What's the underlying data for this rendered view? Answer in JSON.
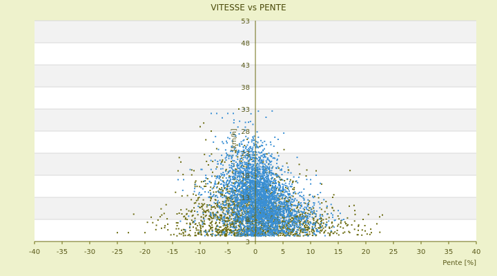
{
  "chart_data": {
    "type": "scatter",
    "title": "VITESSE vs PENTE",
    "xlabel": "Pente [%]",
    "ylabel": "[km/h]",
    "xlim": [
      -40,
      40
    ],
    "ylim": [
      3,
      53
    ],
    "x_ticks": [
      -40,
      -35,
      -30,
      -25,
      -20,
      -15,
      -10,
      -5,
      0,
      5,
      10,
      15,
      20,
      25,
      30,
      35,
      40
    ],
    "y_ticks": [
      3,
      8,
      13,
      18,
      23,
      28,
      33,
      38,
      43,
      48,
      53
    ],
    "grid": true,
    "legend": "none",
    "series": [
      {
        "color": "#6b6b10",
        "clusters": [
          {
            "cx": 0,
            "cy": 10,
            "sx": 4.5,
            "sy": 4.5,
            "n": 900
          },
          {
            "cx": 3,
            "cy": 7,
            "sx": 6,
            "sy": 2.2,
            "n": 450
          },
          {
            "cx": -4,
            "cy": 11,
            "sx": 4,
            "sy": 6,
            "n": 350
          },
          {
            "cx": 10,
            "cy": 6,
            "sx": 6,
            "sy": 1.8,
            "n": 160
          },
          {
            "cx": -10,
            "cy": 7,
            "sx": 4,
            "sy": 2.5,
            "n": 140
          }
        ],
        "outliers": [
          {
            "x": -25,
            "y": 5
          },
          {
            "x": -23,
            "y": 5
          },
          {
            "x": -20,
            "y": 5
          },
          {
            "x": -17,
            "y": 6
          },
          {
            "x": -14,
            "y": 19
          },
          {
            "x": -13.5,
            "y": 21
          },
          {
            "x": -10,
            "y": 29
          },
          {
            "x": -8,
            "y": 28
          },
          {
            "x": -3,
            "y": 33
          },
          {
            "x": 21,
            "y": 5
          },
          {
            "x": 22,
            "y": 7
          },
          {
            "x": 23,
            "y": 9
          },
          {
            "x": 19.5,
            "y": 8
          },
          {
            "x": 18,
            "y": 10
          },
          {
            "x": 17,
            "y": 11
          },
          {
            "x": 14,
            "y": 13
          },
          {
            "x": 11,
            "y": 19
          },
          {
            "x": 12,
            "y": 16
          }
        ]
      },
      {
        "color": "#3a8fd4",
        "clusters": [
          {
            "cx": 0.5,
            "cy": 13,
            "sx": 2.3,
            "sy": 5,
            "n": 1800
          },
          {
            "cx": 3,
            "cy": 10,
            "sx": 3.5,
            "sy": 3,
            "n": 700
          },
          {
            "cx": -2,
            "cy": 18,
            "sx": 2.5,
            "sy": 5,
            "n": 500
          },
          {
            "cx": 7,
            "cy": 8,
            "sx": 3.5,
            "sy": 2,
            "n": 250
          },
          {
            "cx": -5,
            "cy": 12,
            "sx": 3,
            "sy": 5,
            "n": 220
          }
        ],
        "outliers": [
          {
            "x": -8,
            "y": 32
          },
          {
            "x": -7,
            "y": 32
          },
          {
            "x": -6,
            "y": 31
          },
          {
            "x": -5,
            "y": 32
          },
          {
            "x": -4,
            "y": 32
          },
          {
            "x": -2,
            "y": 33
          },
          {
            "x": -14,
            "y": 17
          },
          {
            "x": -13,
            "y": 17
          },
          {
            "x": -11,
            "y": 15
          },
          {
            "x": 10,
            "y": 17
          },
          {
            "x": 11,
            "y": 18
          },
          {
            "x": 13,
            "y": 11
          },
          {
            "x": 14,
            "y": 9
          },
          {
            "x": 16,
            "y": 8
          },
          {
            "x": 15,
            "y": 10
          }
        ]
      }
    ]
  }
}
